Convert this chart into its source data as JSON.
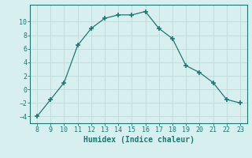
{
  "x": [
    8,
    9,
    10,
    11,
    12,
    13,
    14,
    15,
    16,
    17,
    18,
    19,
    20,
    21,
    22,
    23
  ],
  "y": [
    -4,
    -1.5,
    1,
    6.5,
    9,
    10.5,
    11,
    11,
    11.5,
    9,
    7.5,
    3.5,
    2.5,
    1,
    -1.5,
    -2
  ],
  "line_color": "#1a7a6e",
  "marker": "+",
  "marker_size": 4,
  "bg_color": "#d8eff0",
  "grid_color": "#c0dada",
  "xlabel": "Humidex (Indice chaleur)",
  "xlabel_fontsize": 7,
  "tick_fontsize": 6,
  "xlim": [
    7.5,
    23.5
  ],
  "ylim": [
    -5,
    12.5
  ],
  "yticks": [
    -4,
    -2,
    0,
    2,
    4,
    6,
    8,
    10
  ],
  "xticks": [
    8,
    9,
    10,
    11,
    12,
    13,
    14,
    15,
    16,
    17,
    18,
    19,
    20,
    21,
    22,
    23
  ]
}
